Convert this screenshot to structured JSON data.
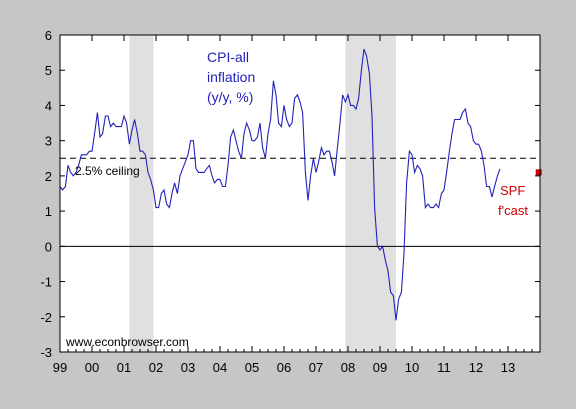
{
  "chart_data": {
    "type": "line",
    "title": "",
    "xlabel": "",
    "ylabel": "",
    "ylim": [
      -3,
      6
    ],
    "xlim": [
      1999,
      2014
    ],
    "y_ticks": [
      6,
      5,
      4,
      3,
      2,
      1,
      0,
      -1,
      -2,
      -3
    ],
    "x_tick_labels": [
      "99",
      "00",
      "01",
      "02",
      "03",
      "04",
      "05",
      "06",
      "07",
      "08",
      "09",
      "10",
      "11",
      "12",
      "13"
    ],
    "grid": false,
    "recessions": [
      [
        2001.17,
        2001.92
      ],
      [
        2007.92,
        2009.5
      ]
    ],
    "reference_lines": [
      {
        "name": "2.5% ceiling",
        "y": 2.5,
        "style": "dashed",
        "label": "2.5% ceiling"
      },
      {
        "name": "zero",
        "y": 0,
        "style": "solid"
      }
    ],
    "annotations": {
      "series_label": [
        "CPI-all",
        "inflation",
        "(y/y, %)"
      ],
      "spf_label": [
        "SPF",
        "f'cast"
      ],
      "source": "www.econbrowser.com"
    },
    "series": [
      {
        "name": "CPI-all inflation (y/y, %)",
        "color": "#2222bb",
        "points": [
          [
            1999.0,
            1.7
          ],
          [
            1999.08,
            1.6
          ],
          [
            1999.17,
            1.7
          ],
          [
            1999.25,
            2.3
          ],
          [
            1999.33,
            2.1
          ],
          [
            1999.42,
            2.0
          ],
          [
            1999.5,
            2.1
          ],
          [
            1999.58,
            2.3
          ],
          [
            1999.67,
            2.6
          ],
          [
            1999.75,
            2.6
          ],
          [
            1999.83,
            2.6
          ],
          [
            1999.92,
            2.7
          ],
          [
            2000.0,
            2.7
          ],
          [
            2000.08,
            3.2
          ],
          [
            2000.17,
            3.8
          ],
          [
            2000.25,
            3.1
          ],
          [
            2000.33,
            3.2
          ],
          [
            2000.42,
            3.7
          ],
          [
            2000.5,
            3.7
          ],
          [
            2000.58,
            3.4
          ],
          [
            2000.67,
            3.5
          ],
          [
            2000.75,
            3.4
          ],
          [
            2000.83,
            3.4
          ],
          [
            2000.92,
            3.4
          ],
          [
            2001.0,
            3.7
          ],
          [
            2001.08,
            3.5
          ],
          [
            2001.17,
            2.9
          ],
          [
            2001.25,
            3.3
          ],
          [
            2001.33,
            3.6
          ],
          [
            2001.42,
            3.2
          ],
          [
            2001.5,
            2.7
          ],
          [
            2001.58,
            2.7
          ],
          [
            2001.67,
            2.6
          ],
          [
            2001.75,
            2.1
          ],
          [
            2001.83,
            1.9
          ],
          [
            2001.92,
            1.6
          ],
          [
            2002.0,
            1.1
          ],
          [
            2002.08,
            1.1
          ],
          [
            2002.17,
            1.5
          ],
          [
            2002.25,
            1.6
          ],
          [
            2002.33,
            1.2
          ],
          [
            2002.42,
            1.1
          ],
          [
            2002.5,
            1.5
          ],
          [
            2002.58,
            1.8
          ],
          [
            2002.67,
            1.5
          ],
          [
            2002.75,
            2.0
          ],
          [
            2002.83,
            2.2
          ],
          [
            2002.92,
            2.4
          ],
          [
            2003.0,
            2.6
          ],
          [
            2003.08,
            3.0
          ],
          [
            2003.17,
            3.0
          ],
          [
            2003.25,
            2.2
          ],
          [
            2003.33,
            2.1
          ],
          [
            2003.42,
            2.1
          ],
          [
            2003.5,
            2.1
          ],
          [
            2003.58,
            2.2
          ],
          [
            2003.67,
            2.3
          ],
          [
            2003.75,
            2.0
          ],
          [
            2003.83,
            1.8
          ],
          [
            2003.92,
            1.9
          ],
          [
            2004.0,
            1.9
          ],
          [
            2004.08,
            1.7
          ],
          [
            2004.17,
            1.7
          ],
          [
            2004.25,
            2.3
          ],
          [
            2004.33,
            3.1
          ],
          [
            2004.42,
            3.3
          ],
          [
            2004.5,
            3.0
          ],
          [
            2004.58,
            2.7
          ],
          [
            2004.67,
            2.5
          ],
          [
            2004.75,
            3.2
          ],
          [
            2004.83,
            3.5
          ],
          [
            2004.92,
            3.3
          ],
          [
            2005.0,
            3.0
          ],
          [
            2005.08,
            3.0
          ],
          [
            2005.17,
            3.1
          ],
          [
            2005.25,
            3.5
          ],
          [
            2005.33,
            2.8
          ],
          [
            2005.42,
            2.5
          ],
          [
            2005.5,
            3.2
          ],
          [
            2005.58,
            3.6
          ],
          [
            2005.67,
            4.7
          ],
          [
            2005.75,
            4.3
          ],
          [
            2005.83,
            3.5
          ],
          [
            2005.92,
            3.4
          ],
          [
            2006.0,
            4.0
          ],
          [
            2006.08,
            3.6
          ],
          [
            2006.17,
            3.4
          ],
          [
            2006.25,
            3.5
          ],
          [
            2006.33,
            4.2
          ],
          [
            2006.42,
            4.3
          ],
          [
            2006.5,
            4.1
          ],
          [
            2006.58,
            3.8
          ],
          [
            2006.67,
            2.1
          ],
          [
            2006.75,
            1.3
          ],
          [
            2006.83,
            2.0
          ],
          [
            2006.92,
            2.5
          ],
          [
            2007.0,
            2.1
          ],
          [
            2007.08,
            2.4
          ],
          [
            2007.17,
            2.8
          ],
          [
            2007.25,
            2.6
          ],
          [
            2007.33,
            2.7
          ],
          [
            2007.42,
            2.7
          ],
          [
            2007.5,
            2.4
          ],
          [
            2007.58,
            2.0
          ],
          [
            2007.67,
            2.8
          ],
          [
            2007.75,
            3.5
          ],
          [
            2007.83,
            4.3
          ],
          [
            2007.92,
            4.1
          ],
          [
            2008.0,
            4.3
          ],
          [
            2008.08,
            4.0
          ],
          [
            2008.17,
            4.0
          ],
          [
            2008.25,
            3.9
          ],
          [
            2008.33,
            4.2
          ],
          [
            2008.42,
            5.0
          ],
          [
            2008.5,
            5.6
          ],
          [
            2008.58,
            5.4
          ],
          [
            2008.67,
            4.9
          ],
          [
            2008.75,
            3.7
          ],
          [
            2008.83,
            1.1
          ],
          [
            2008.92,
            0.0
          ],
          [
            2009.0,
            -0.1
          ],
          [
            2009.08,
            0.0
          ],
          [
            2009.17,
            -0.4
          ],
          [
            2009.25,
            -0.7
          ],
          [
            2009.33,
            -1.3
          ],
          [
            2009.42,
            -1.4
          ],
          [
            2009.5,
            -2.1
          ],
          [
            2009.58,
            -1.5
          ],
          [
            2009.67,
            -1.3
          ],
          [
            2009.75,
            -0.2
          ],
          [
            2009.83,
            1.8
          ],
          [
            2009.92,
            2.7
          ],
          [
            2010.0,
            2.6
          ],
          [
            2010.08,
            2.1
          ],
          [
            2010.17,
            2.3
          ],
          [
            2010.25,
            2.2
          ],
          [
            2010.33,
            2.0
          ],
          [
            2010.42,
            1.1
          ],
          [
            2010.5,
            1.2
          ],
          [
            2010.58,
            1.1
          ],
          [
            2010.67,
            1.1
          ],
          [
            2010.75,
            1.2
          ],
          [
            2010.83,
            1.1
          ],
          [
            2010.92,
            1.5
          ],
          [
            2011.0,
            1.6
          ],
          [
            2011.08,
            2.1
          ],
          [
            2011.17,
            2.7
          ],
          [
            2011.25,
            3.2
          ],
          [
            2011.33,
            3.6
          ],
          [
            2011.42,
            3.6
          ],
          [
            2011.5,
            3.6
          ],
          [
            2011.58,
            3.8
          ],
          [
            2011.67,
            3.9
          ],
          [
            2011.75,
            3.5
          ],
          [
            2011.83,
            3.4
          ],
          [
            2011.92,
            3.0
          ],
          [
            2012.0,
            2.9
          ],
          [
            2012.08,
            2.9
          ],
          [
            2012.17,
            2.7
          ],
          [
            2012.25,
            2.3
          ],
          [
            2012.33,
            1.7
          ],
          [
            2012.42,
            1.7
          ],
          [
            2012.5,
            1.4
          ],
          [
            2012.58,
            1.7
          ],
          [
            2012.67,
            2.0
          ],
          [
            2012.75,
            2.2
          ]
        ]
      },
      {
        "name": "SPF f'cast",
        "color": "#cc0000",
        "points": [
          [
            2013.96,
            2.1
          ]
        ]
      }
    ]
  }
}
